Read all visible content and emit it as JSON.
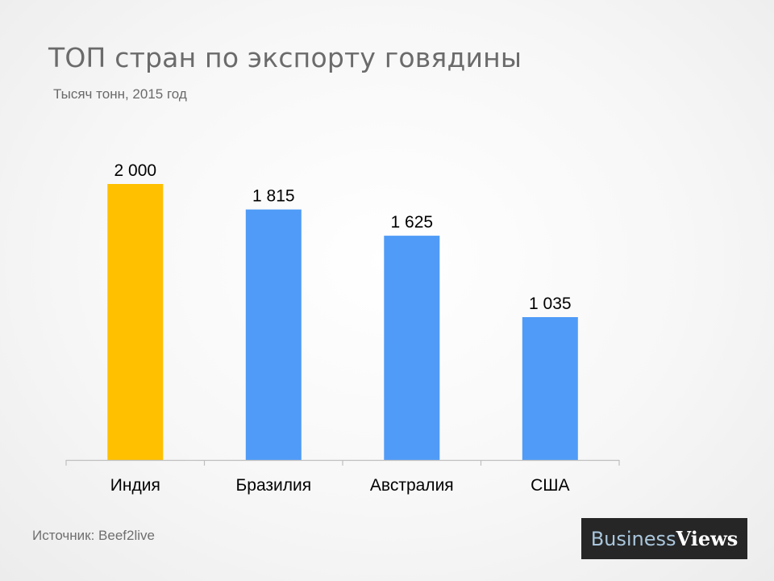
{
  "title": "ТОП стран по экспорту говядины",
  "subtitle": "Тысяч тонн, 2015 год",
  "source": "Источник: Beef2live",
  "logo": {
    "part1": "Business",
    "part2": "Views"
  },
  "colors": {
    "highlight": "#FFC000",
    "bar": "#4F9BF7",
    "axis": "#BFBFBF",
    "text": "#000000"
  },
  "chart_data": {
    "type": "bar",
    "title": "ТОП стран по экспорту говядины",
    "subtitle": "Тысяч тонн, 2015 год",
    "categories": [
      "Индия",
      "Бразилия",
      "Австралия",
      "США"
    ],
    "values": [
      2000,
      1815,
      1625,
      1035
    ],
    "value_labels": [
      "2 000",
      "1 815",
      "1 625",
      "1 035"
    ],
    "highlight_index": 0,
    "ylim": [
      0,
      2000
    ],
    "grid": false,
    "legend": "none",
    "xlabel": "",
    "ylabel": ""
  }
}
